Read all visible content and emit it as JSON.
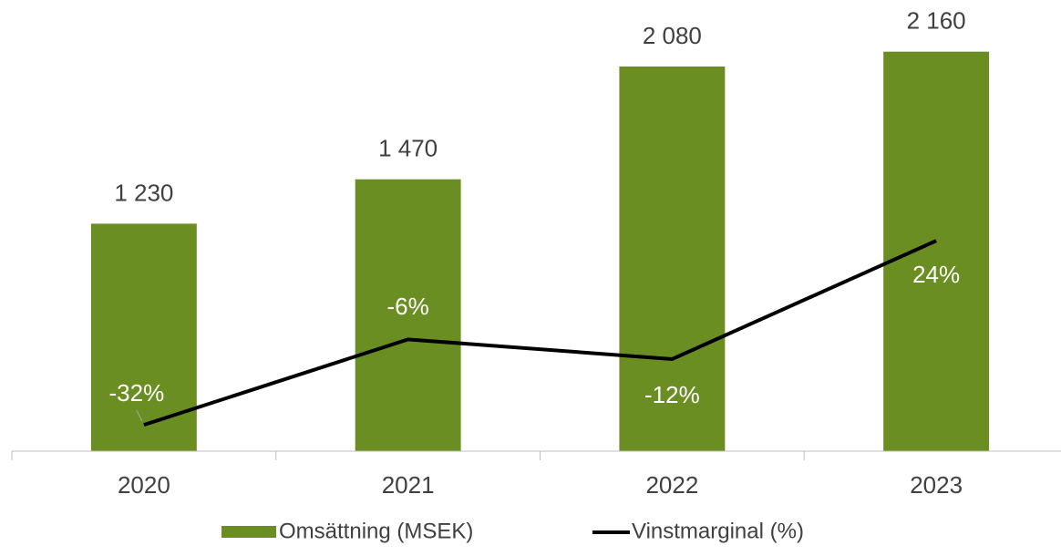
{
  "chart_data": {
    "type": "bar_line",
    "categories": [
      "2020",
      "2021",
      "2022",
      "2023"
    ],
    "series": [
      {
        "name": "Omsättning (MSEK)",
        "type": "bar",
        "color": "#6b8e23",
        "values": [
          1230,
          1470,
          2080,
          2160
        ],
        "value_labels": [
          "1 230",
          "1 470",
          "2 080",
          "2 160"
        ]
      },
      {
        "name": "Vinstmarginal (%)",
        "type": "line",
        "axis": "y2",
        "color": "#000000",
        "values": [
          -32,
          -6,
          -12,
          24
        ],
        "value_labels": [
          "-32%",
          "-6%",
          "-12%",
          "24%"
        ]
      }
    ],
    "ylim": [
      0,
      2400
    ],
    "y2lim": [
      -40,
      95
    ]
  }
}
